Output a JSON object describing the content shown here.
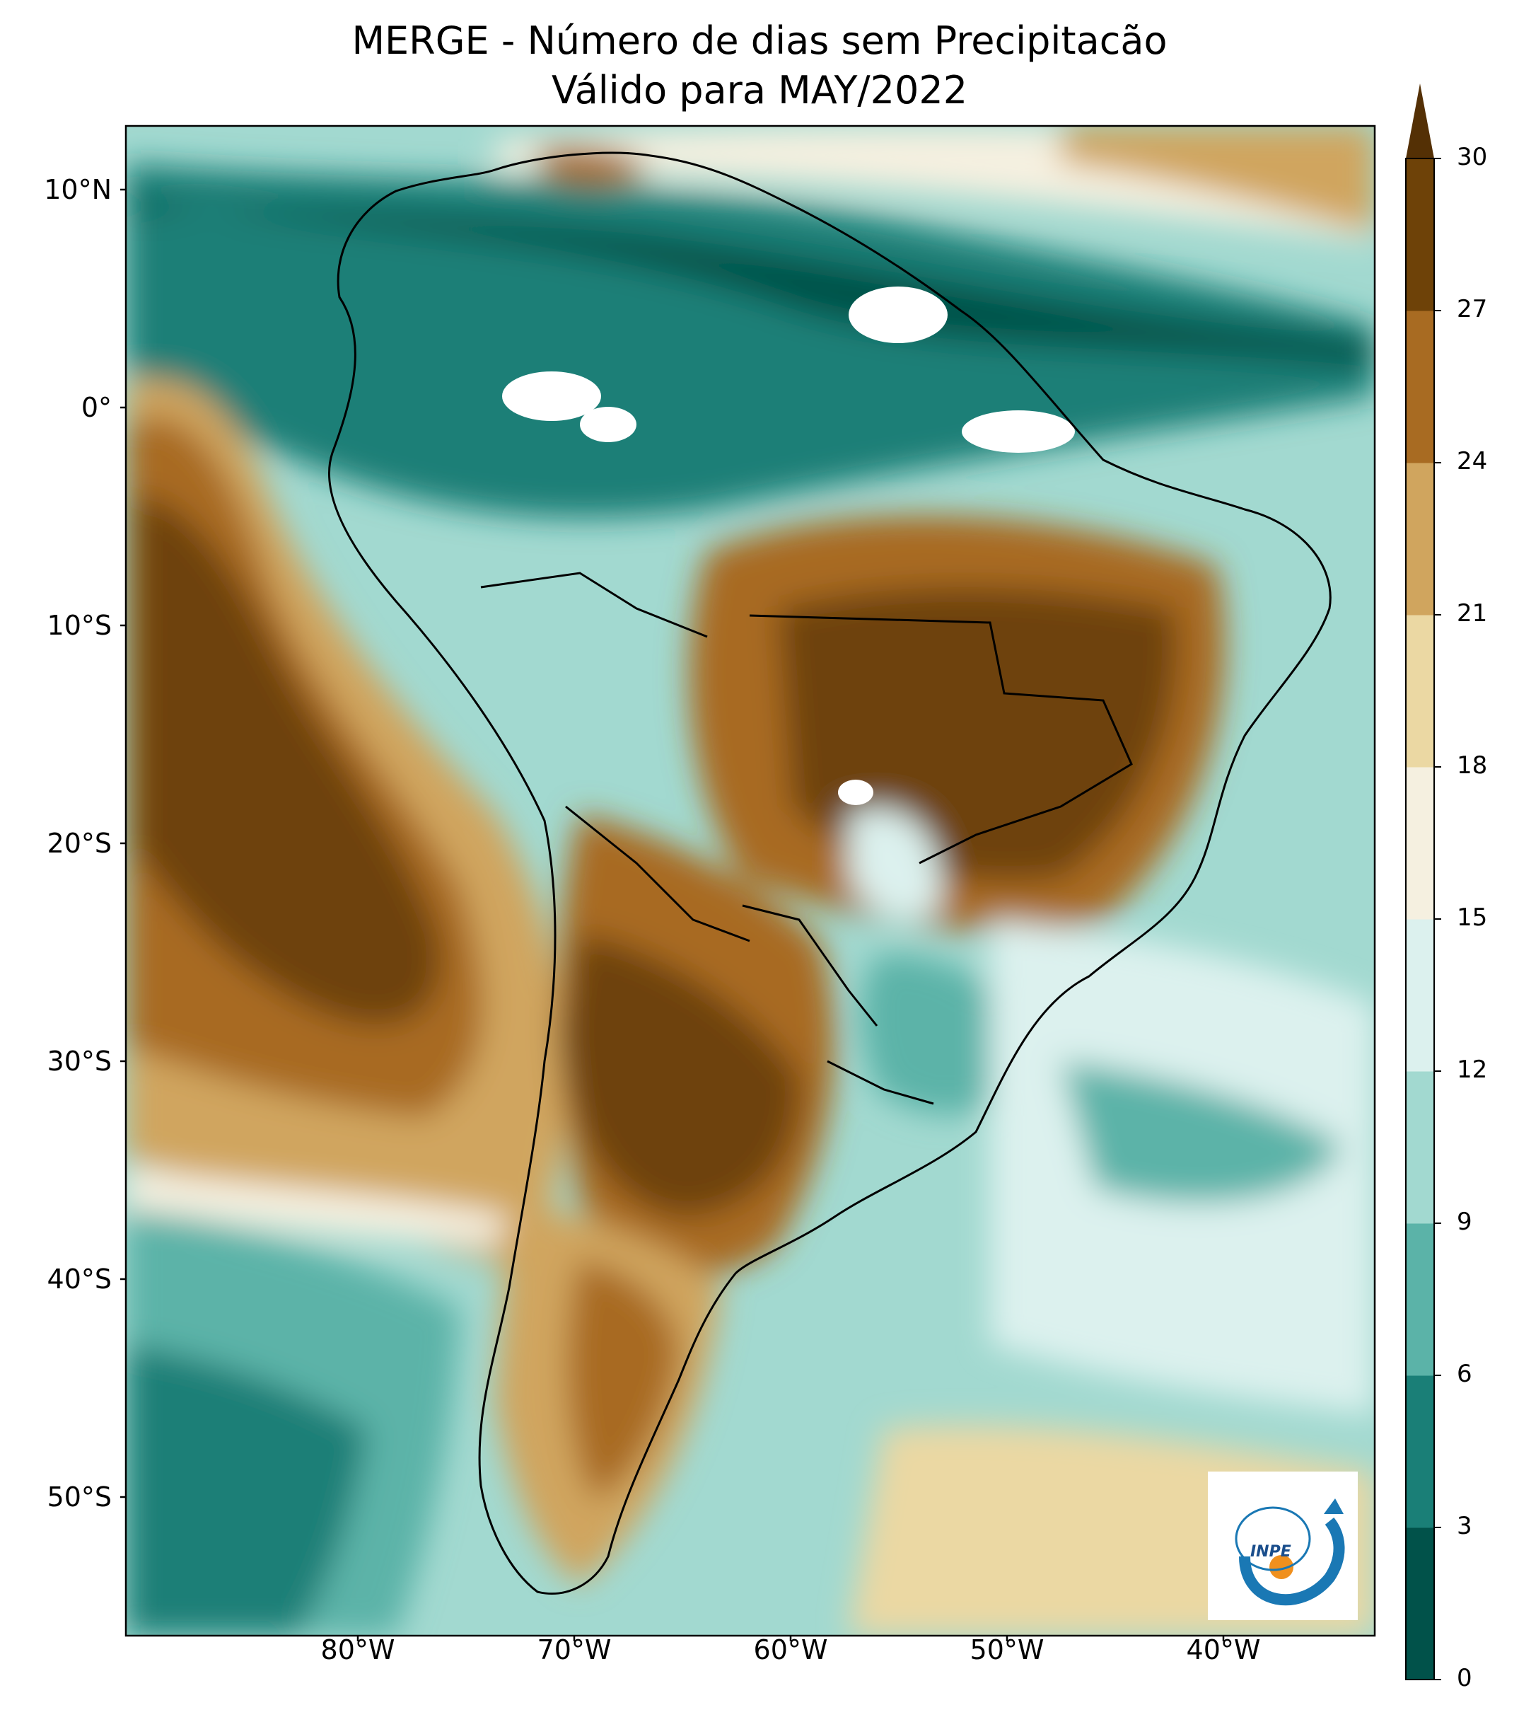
{
  "title": {
    "line1": "MERGE - Número de dias sem Precipitacão",
    "line2": "Válido para MAY/2022"
  },
  "axes": {
    "lat_labels": [
      "10°N",
      "0°",
      "10°S",
      "20°S",
      "30°S",
      "40°S",
      "50°S"
    ],
    "lon_labels": [
      "80°W",
      "70°W",
      "60°W",
      "50°W",
      "40°W"
    ]
  },
  "colorbar": {
    "ticks": [
      "0",
      "3",
      "6",
      "9",
      "12",
      "15",
      "18",
      "21",
      "24",
      "27",
      "30"
    ],
    "colors": [
      "#01524a",
      "#1a7f77",
      "#5bb3a8",
      "#a2d9d0",
      "#dcf1ee",
      "#f5f0e0",
      "#ebd8a3",
      "#d0a55e",
      "#a86b22",
      "#6e4208"
    ],
    "extend_color": "#543005"
  },
  "logo": {
    "text": "INPE"
  }
}
